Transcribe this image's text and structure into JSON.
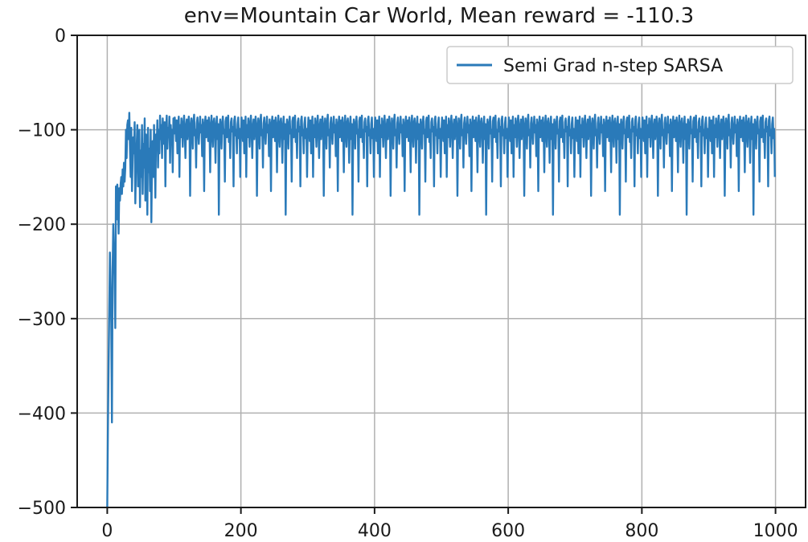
{
  "chart_data": {
    "type": "line",
    "title": "env=Mountain Car World, Mean reward = -110.3",
    "xlabel": "",
    "ylabel": "",
    "xlim": [
      -45,
      1045
    ],
    "ylim": [
      -500,
      0
    ],
    "xticks": [
      0,
      200,
      400,
      600,
      800,
      1000
    ],
    "xtick_labels": [
      "0",
      "200",
      "400",
      "600",
      "800",
      "1000"
    ],
    "yticks": [
      0,
      -100,
      -200,
      -300,
      -400,
      -500
    ],
    "ytick_labels": [
      "0",
      "−100",
      "−200",
      "−300",
      "−400",
      "−500"
    ],
    "grid": true,
    "legend_position": "top-right",
    "series": [
      {
        "name": "Semi Grad n-step SARSA",
        "color": "#2a7ab9",
        "x_start": 0,
        "x_step": 1,
        "values": [
          -500,
          -415,
          -350,
          -290,
          -230,
          -268,
          -305,
          -410,
          -250,
          -200,
          -228,
          -255,
          -310,
          -160,
          -195,
          -158,
          -170,
          -210,
          -162,
          -175,
          -158,
          -150,
          -168,
          -142,
          -160,
          -135,
          -155,
          -140,
          -100,
          -130,
          -95,
          -90,
          -110,
          -82,
          -120,
          -150,
          -98,
          -165,
          -130,
          -108,
          -125,
          -92,
          -178,
          -140,
          -118,
          -95,
          -160,
          -135,
          -100,
          -182,
          -122,
          -150,
          -95,
          -168,
          -115,
          -140,
          -88,
          -175,
          -105,
          -130,
          -190,
          -98,
          -145,
          -120,
          -165,
          -100,
          -198,
          -135,
          -112,
          -150,
          -95,
          -130,
          -172,
          -105,
          -118,
          -90,
          -140,
          -100,
          -125,
          -85,
          -110,
          -95,
          -130,
          -88,
          -102,
          -115,
          -92,
          -160,
          -100,
          -85,
          -120,
          -98,
          -108,
          -86,
          -135,
          -95,
          -112,
          -100,
          -145,
          -88
        ],
        "tail_values": [
          -104,
          -87,
          -98,
          -112,
          -90,
          -125,
          -100,
          -86,
          -150,
          -95,
          -108,
          -88,
          -100,
          -118,
          -92,
          -85,
          -102,
          -130,
          -97,
          -89,
          -110,
          -100,
          -86,
          -95,
          -170,
          -104,
          -88,
          -99,
          -120,
          -91,
          -84,
          -106,
          -100,
          -140,
          -93,
          -87,
          -101,
          -115,
          -98,
          -86,
          -103,
          -95,
          -128,
          -89,
          -100,
          -165,
          -94,
          -86,
          -108,
          -99,
          -90,
          -112,
          -87,
          -100,
          -145,
          -96,
          -85,
          -105,
          -118,
          -92,
          -88,
          -100,
          -135,
          -97,
          -86,
          -110,
          -94,
          -190,
          -101,
          -89,
          -99,
          -120,
          -93,
          -86,
          -104,
          -100,
          -155,
          -91,
          -87,
          -108,
          -96,
          -85,
          -113,
          -100,
          -130,
          -92,
          -88,
          -102,
          -97,
          -160,
          -90,
          -86,
          -106,
          -100,
          -125,
          -94,
          -87,
          -109,
          -99,
          -150
        ]
      }
    ]
  }
}
